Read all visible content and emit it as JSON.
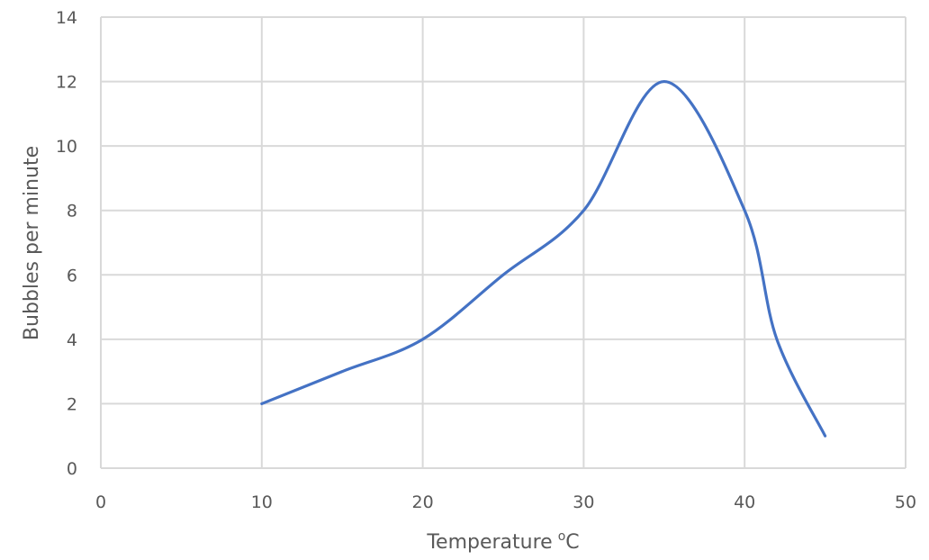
{
  "chart_data": {
    "type": "line",
    "title": "",
    "xlabel": "Temperature",
    "xlabel_superscript": "o",
    "xlabel_unit": "C",
    "ylabel": "Bubbles per minute",
    "x": [
      10,
      15,
      20,
      25,
      30,
      35,
      40,
      42,
      45
    ],
    "series": [
      {
        "name": "Bubbles per minute",
        "values": [
          2,
          3,
          4,
          6,
          8,
          12,
          8,
          4,
          1
        ],
        "color": "#4472C4",
        "smooth": true
      }
    ],
    "xlim": [
      0,
      50
    ],
    "ylim": [
      0,
      14
    ],
    "xticks": [
      0,
      10,
      20,
      30,
      40,
      50
    ],
    "yticks": [
      0,
      2,
      4,
      6,
      8,
      10,
      12,
      14
    ],
    "grid": true,
    "grid_color": "#D9D9D9",
    "legend": "none"
  }
}
